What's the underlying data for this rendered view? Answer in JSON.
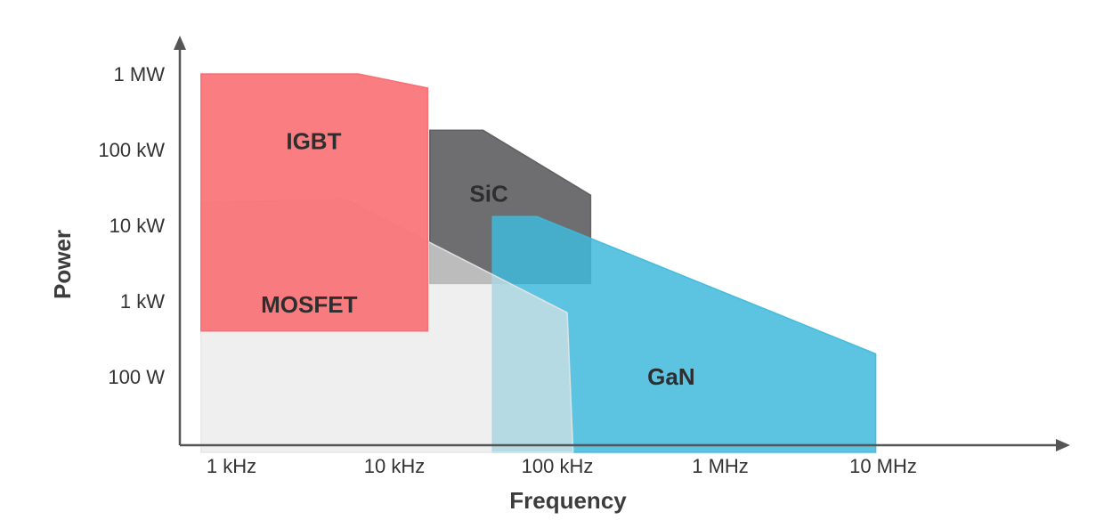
{
  "chart_data": {
    "type": "area",
    "xlabel": "Frequency",
    "ylabel": "Power",
    "x_scale": "log",
    "y_scale": "log",
    "x_ticks": [
      {
        "label": "1 kHz",
        "value": 1000
      },
      {
        "label": "10 kHz",
        "value": 10000
      },
      {
        "label": "100 kHz",
        "value": 100000
      },
      {
        "label": "1 MHz",
        "value": 1000000
      },
      {
        "label": "10 MHz",
        "value": 10000000
      }
    ],
    "y_ticks": [
      {
        "label": "1 MW",
        "value": 1000000
      },
      {
        "label": "100 kW",
        "value": 100000
      },
      {
        "label": "10 kW",
        "value": 10000
      },
      {
        "label": "1 kW",
        "value": 1000
      },
      {
        "label": "100 W",
        "value": 100
      }
    ],
    "regions": [
      {
        "name": "SiC",
        "color": "#5a5a5c",
        "opacity": 0.88,
        "points": [
          [
            16500,
            180000
          ],
          [
            35000,
            180000
          ],
          [
            160000,
            25000
          ],
          [
            160000,
            1700
          ],
          [
            16500,
            1700
          ]
        ]
      },
      {
        "name": "GaN",
        "color": "#3fb8da",
        "opacity": 0.85,
        "points": [
          [
            40000,
            13000
          ],
          [
            75000,
            13000
          ],
          [
            9000000,
            200
          ],
          [
            9000000,
            10
          ],
          [
            40000,
            10
          ]
        ]
      },
      {
        "name": "MOSFET",
        "color": "#e6e6e6",
        "opacity": 0.65,
        "points": [
          [
            650,
            20000
          ],
          [
            5000,
            22000
          ],
          [
            115000,
            700
          ],
          [
            125000,
            10
          ],
          [
            650,
            10
          ]
        ]
      },
      {
        "name": "IGBT",
        "color": "#f9676b",
        "opacity": 0.85,
        "points": [
          [
            650,
            1000000
          ],
          [
            6000,
            1000000
          ],
          [
            16000,
            650000
          ],
          [
            16000,
            400
          ],
          [
            650,
            400
          ]
        ]
      }
    ],
    "labels": [
      {
        "text": "IGBT",
        "x": 3200,
        "y": 130000
      },
      {
        "text": "SiC",
        "x": 38000,
        "y": 26000
      },
      {
        "text": "MOSFET",
        "x": 3000,
        "y": 900
      },
      {
        "text": "GaN",
        "x": 500000,
        "y": 100
      }
    ]
  }
}
